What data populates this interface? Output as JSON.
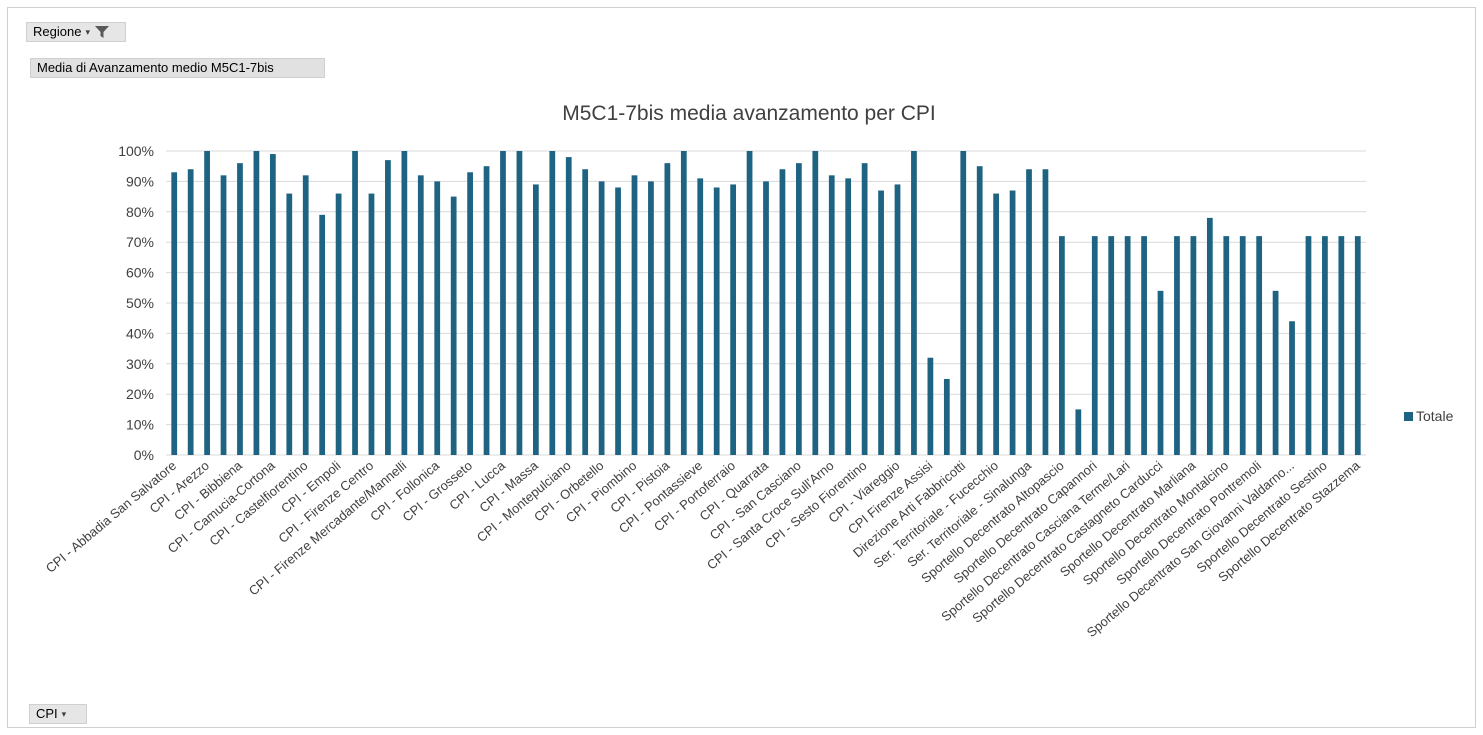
{
  "report_filter": {
    "label": "Regione",
    "filter_icon": "filter-icon",
    "dropdown_icon": "chevron-down-icon"
  },
  "value_field": {
    "label": "Media di Avanzamento medio M5C1-7bis"
  },
  "axis_field": {
    "label": "CPI",
    "dropdown_icon": "chevron-down-icon"
  },
  "colors": {
    "bar": "#1e6482",
    "grid": "#d9d9d9",
    "text": "#404040"
  },
  "chart_data": {
    "type": "bar",
    "title": "M5C1-7bis media avanzamento per CPI",
    "xlabel": "",
    "ylabel": "",
    "ylim": [
      0,
      1
    ],
    "y_ticks": [
      "0%",
      "10%",
      "20%",
      "30%",
      "40%",
      "50%",
      "60%",
      "70%",
      "80%",
      "90%",
      "100%"
    ],
    "grid": true,
    "legend_position": "right",
    "categories": [
      "CPI - Abbadia San Salvatore",
      "",
      "CPI - Arezzo",
      "",
      "CPI - Bibbiena",
      "",
      "CPI - Camucia-Cortona",
      "",
      "CPI - Castelfiorentino",
      "",
      "CPI - Empoli",
      "",
      "CPI - Firenze Centro",
      "",
      "CPI - Firenze Mercadante/Mannelli",
      "",
      "CPI - Follonica",
      "",
      "CPI - Grosseto",
      "",
      "CPI - Lucca",
      "",
      "CPI - Massa",
      "",
      "CPI - Montepulciano",
      "",
      "CPI - Orbetello",
      "",
      "CPI - Piombino",
      "",
      "CPI - Pistoia",
      "",
      "CPI - Pontassieve",
      "",
      "CPI - Portoferraio",
      "",
      "CPI - Quarrata",
      "",
      "CPI - San Casciano",
      "",
      "CPI - Santa Croce Sull'Arno",
      "",
      "CPI - Sesto Fiorentino",
      "",
      "CPI - Viareggio",
      "",
      "CPI Firenze Assisi",
      "",
      "Direzione Arti Fabbricotti",
      "",
      "Ser. Territoriale - Fucecchio",
      "",
      "Ser. Territoriale - Sinalunga",
      "",
      "Sportello Decentrato Altopascio",
      "",
      "Sportello Decentrato Capannori",
      "",
      "Sportello Decentrato Casciana Terme/Lari",
      "",
      "Sportello Decentrato Castagneto Carducci",
      "",
      "Sportello Decentrato Marliana",
      "",
      "Sportello Decentrato Montalcino",
      "",
      "Sportello Decentrato Pontremoli",
      "",
      "Sportello Decentrato San Giovanni Valdarno...",
      "",
      "Sportello Decentrato Sestino",
      "",
      "Sportello Decentrato Stazzema"
    ],
    "series": [
      {
        "name": "Totale",
        "values": [
          0.93,
          0.94,
          1.0,
          0.92,
          0.96,
          1.0,
          0.99,
          0.86,
          0.92,
          0.79,
          0.86,
          1.0,
          0.86,
          0.97,
          1.0,
          0.92,
          0.9,
          0.85,
          0.93,
          0.95,
          1.0,
          1.0,
          0.89,
          1.0,
          0.98,
          0.94,
          0.9,
          0.88,
          0.92,
          0.9,
          0.96,
          1.0,
          0.91,
          0.88,
          0.89,
          1.0,
          0.9,
          0.94,
          0.96,
          1.0,
          0.92,
          0.91,
          0.96,
          0.87,
          0.89,
          1.0,
          0.32,
          0.25,
          1.0,
          0.95,
          0.86,
          0.87,
          0.94,
          0.94,
          0.72,
          0.15,
          0.72,
          0.72,
          0.72,
          0.72,
          0.54,
          0.72,
          0.72,
          0.78,
          0.72,
          0.72,
          0.72,
          0.54,
          0.44,
          0.72,
          0.72,
          0.72,
          0.72
        ]
      }
    ]
  }
}
